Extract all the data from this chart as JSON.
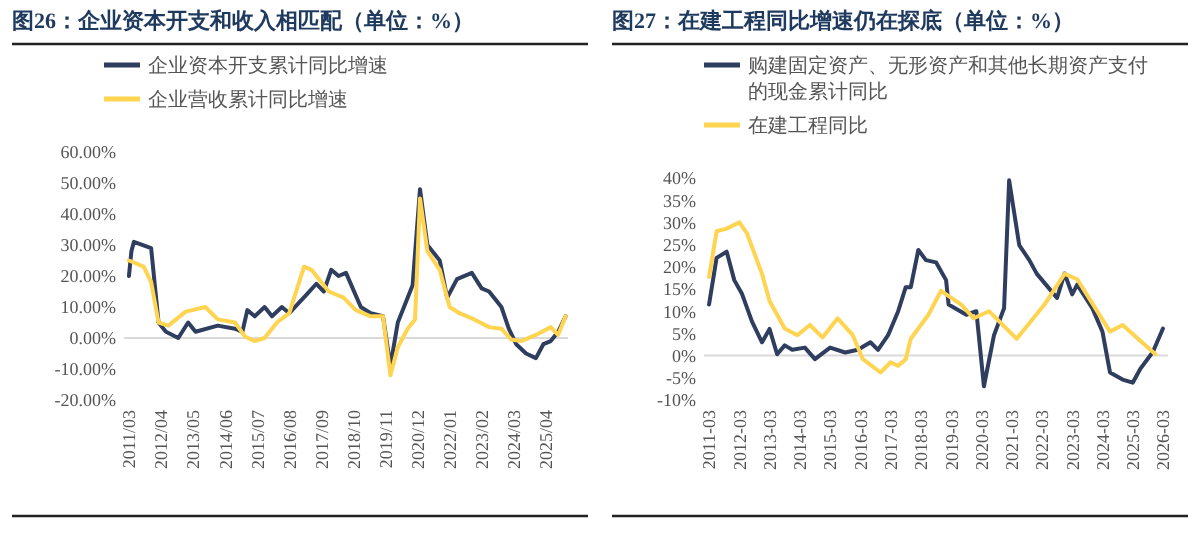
{
  "chart_data": [
    {
      "type": "line",
      "title": "图26：企业资本开支和收入相匹配（单位：%）",
      "legend": "top",
      "xlim": [
        "2011-01",
        "2026-01"
      ],
      "xticks": [
        {
          "value": "2011-03",
          "label": "2011/03"
        },
        {
          "value": "2012-04",
          "label": "2012/04"
        },
        {
          "value": "2013-05",
          "label": "2013/05"
        },
        {
          "value": "2014-06",
          "label": "2014/06"
        },
        {
          "value": "2015-07",
          "label": "2015/07"
        },
        {
          "value": "2016-08",
          "label": "2016/08"
        },
        {
          "value": "2017-09",
          "label": "2017/09"
        },
        {
          "value": "2018-10",
          "label": "2018/10"
        },
        {
          "value": "2019-11",
          "label": "2019/11"
        },
        {
          "value": "2020-12",
          "label": "2020/12"
        },
        {
          "value": "2022-01",
          "label": "2022/01"
        },
        {
          "value": "2023-02",
          "label": "2023/02"
        },
        {
          "value": "2024-03",
          "label": "2024/03"
        },
        {
          "value": "2025-04",
          "label": "2025/04"
        }
      ],
      "ylim": [
        -20,
        60
      ],
      "yticks": [
        {
          "value": -20,
          "label": "-20.00%"
        },
        {
          "value": -10,
          "label": "-10.00%"
        },
        {
          "value": 0,
          "label": "0.00%"
        },
        {
          "value": 10,
          "label": "10.00%"
        },
        {
          "value": 20,
          "label": "20.00%"
        },
        {
          "value": 30,
          "label": "30.00%"
        },
        {
          "value": 40,
          "label": "40.00%"
        },
        {
          "value": 50,
          "label": "50.00%"
        },
        {
          "value": 60,
          "label": "60.00%"
        }
      ],
      "series": [
        {
          "name": "企业资本开支累计同比增速",
          "color": "#2f3e5f",
          "x": [
            "2011-03",
            "2011-04",
            "2011-05",
            "2011-12",
            "2012-03",
            "2012-06",
            "2012-11",
            "2013-03",
            "2013-06",
            "2014-03",
            "2014-10",
            "2015-01",
            "2015-03",
            "2015-06",
            "2015-10",
            "2016-01",
            "2016-05",
            "2016-08",
            "2017-03",
            "2017-07",
            "2017-10",
            "2018-01",
            "2018-04",
            "2018-07",
            "2019-01",
            "2019-05",
            "2019-10",
            "2020-01",
            "2020-04",
            "2020-10",
            "2021-01",
            "2021-04",
            "2021-09",
            "2021-12",
            "2022-04",
            "2022-10",
            "2023-02",
            "2023-05",
            "2023-08",
            "2023-10",
            "2024-01",
            "2024-04",
            "2024-08",
            "2024-12",
            "2025-03",
            "2025-06",
            "2025-09",
            "2025-12"
          ],
          "values": [
            20,
            28,
            31,
            29,
            5,
            2,
            0,
            5,
            2,
            4,
            3,
            2,
            9,
            7,
            10,
            7,
            10,
            8,
            14,
            17.5,
            15,
            22,
            20,
            21,
            10,
            8,
            7,
            -9,
            5,
            17,
            48,
            30,
            25,
            13,
            19,
            21,
            16,
            15,
            12,
            10,
            3,
            -2,
            -5,
            -6.5,
            -2,
            -1,
            2,
            7
          ]
        },
        {
          "name": "企业营收累计同比增速",
          "color": "#ffd450",
          "x": [
            "2011-03",
            "2011-09",
            "2011-12",
            "2012-03",
            "2012-07",
            "2013-02",
            "2013-10",
            "2014-03",
            "2014-10",
            "2015-02",
            "2015-06",
            "2015-10",
            "2016-03",
            "2016-08",
            "2017-02",
            "2017-05",
            "2017-12",
            "2018-06",
            "2018-11",
            "2019-05",
            "2019-10",
            "2020-01",
            "2020-04",
            "2020-08",
            "2020-11",
            "2021-01",
            "2021-04",
            "2021-09",
            "2022-01",
            "2022-05",
            "2022-11",
            "2023-05",
            "2023-10",
            "2024-02",
            "2024-06",
            "2024-12",
            "2025-06",
            "2025-09",
            "2025-12"
          ],
          "values": [
            25,
            23,
            18,
            5,
            4,
            8.5,
            10,
            6,
            5,
            0.5,
            -1,
            0,
            5,
            8,
            23,
            22,
            15,
            13,
            9,
            7,
            7,
            -12,
            -3,
            3,
            6,
            45,
            28,
            22,
            10,
            8,
            6,
            3.5,
            3,
            -0.5,
            -1,
            1,
            3.5,
            1,
            7
          ]
        }
      ]
    },
    {
      "type": "line",
      "title": "图27：在建工程同比增速仍在探底（单位：%）",
      "legend": "top",
      "xlim": [
        "2011-01",
        "2026-05"
      ],
      "xticks": [
        {
          "value": "2011-03",
          "label": "2011-03"
        },
        {
          "value": "2012-03",
          "label": "2012-03"
        },
        {
          "value": "2013-03",
          "label": "2013-03"
        },
        {
          "value": "2014-03",
          "label": "2014-03"
        },
        {
          "value": "2015-03",
          "label": "2015-03"
        },
        {
          "value": "2016-03",
          "label": "2016-03"
        },
        {
          "value": "2017-03",
          "label": "2017-03"
        },
        {
          "value": "2018-03",
          "label": "2018-03"
        },
        {
          "value": "2019-03",
          "label": "2019-03"
        },
        {
          "value": "2020-03",
          "label": "2020-03"
        },
        {
          "value": "2021-03",
          "label": "2021-03"
        },
        {
          "value": "2022-03",
          "label": "2022-03"
        },
        {
          "value": "2023-03",
          "label": "2023-03"
        },
        {
          "value": "2024-03",
          "label": "2024-03"
        },
        {
          "value": "2025-03",
          "label": "2025-03"
        },
        {
          "value": "2026-03",
          "label": "2026-03"
        }
      ],
      "ylim": [
        -10,
        40
      ],
      "yticks": [
        {
          "value": -10,
          "label": "-10%"
        },
        {
          "value": -5,
          "label": "-5%"
        },
        {
          "value": 0,
          "label": "0%"
        },
        {
          "value": 5,
          "label": "5%"
        },
        {
          "value": 10,
          "label": "10%"
        },
        {
          "value": 15,
          "label": "15%"
        },
        {
          "value": 20,
          "label": "20%"
        },
        {
          "value": 25,
          "label": "25%"
        },
        {
          "value": 30,
          "label": "30%"
        },
        {
          "value": 35,
          "label": "35%"
        },
        {
          "value": 40,
          "label": "40%"
        }
      ],
      "series": [
        {
          "name": "购建固定资产、无形资产和其他长期资产支付的现金累计同比",
          "color": "#2f3e5f",
          "x": [
            "2011-03",
            "2011-06",
            "2011-10",
            "2012-01",
            "2012-04",
            "2012-08",
            "2012-12",
            "2013-03",
            "2013-06",
            "2013-09",
            "2013-12",
            "2014-05",
            "2014-09",
            "2015-03",
            "2015-09",
            "2016-02",
            "2016-07",
            "2016-10",
            "2017-02",
            "2017-06",
            "2017-09",
            "2017-11",
            "2018-02",
            "2018-05",
            "2018-09",
            "2019-01",
            "2019-02",
            "2019-09",
            "2020-01",
            "2020-04",
            "2020-08",
            "2020-12",
            "2021-02",
            "2021-06",
            "2021-10",
            "2022-01",
            "2022-09",
            "2022-12",
            "2023-03",
            "2023-05",
            "2023-11",
            "2024-03",
            "2024-06",
            "2024-11",
            "2025-03",
            "2025-06",
            "2025-11",
            "2026-03"
          ],
          "values": [
            11.5,
            22,
            23.4,
            17,
            14,
            7.7,
            3,
            6,
            0.3,
            2.3,
            1.3,
            1.8,
            -0.8,
            1.8,
            0.7,
            1.3,
            3,
            1.3,
            4.6,
            10,
            15.4,
            15.4,
            23.8,
            21.5,
            21,
            17,
            11.5,
            9.2,
            10,
            -6.9,
            4.6,
            10.7,
            39.5,
            24.9,
            21.5,
            18.4,
            13,
            18.5,
            13.8,
            16,
            10.7,
            5.4,
            -3.8,
            -5.4,
            -6.1,
            -3,
            0.8,
            6.1
          ]
        },
        {
          "name": "在建工程同比",
          "color": "#ffd450",
          "x": [
            "2011-03",
            "2011-06",
            "2011-10",
            "2012-03",
            "2012-06",
            "2012-12",
            "2013-03",
            "2013-09",
            "2014-02",
            "2014-07",
            "2014-12",
            "2015-06",
            "2015-12",
            "2016-04",
            "2016-11",
            "2017-03",
            "2017-06",
            "2017-09",
            "2017-11",
            "2018-06",
            "2018-11",
            "2019-07",
            "2019-12",
            "2020-06",
            "2021-05",
            "2022-04",
            "2022-12",
            "2023-05",
            "2024-06",
            "2024-11",
            "2025-12"
          ],
          "values": [
            17.7,
            28,
            28.6,
            30,
            27.6,
            18.4,
            12.3,
            6.1,
            4.6,
            6.9,
            4.1,
            8.4,
            4.6,
            -0.8,
            -3.8,
            -1.5,
            -2.3,
            -0.8,
            3.8,
            9.2,
            14.6,
            11.5,
            8.4,
            10,
            3.8,
            11.5,
            18.4,
            17.2,
            5.4,
            6.9,
            0.3
          ]
        }
      ]
    }
  ]
}
